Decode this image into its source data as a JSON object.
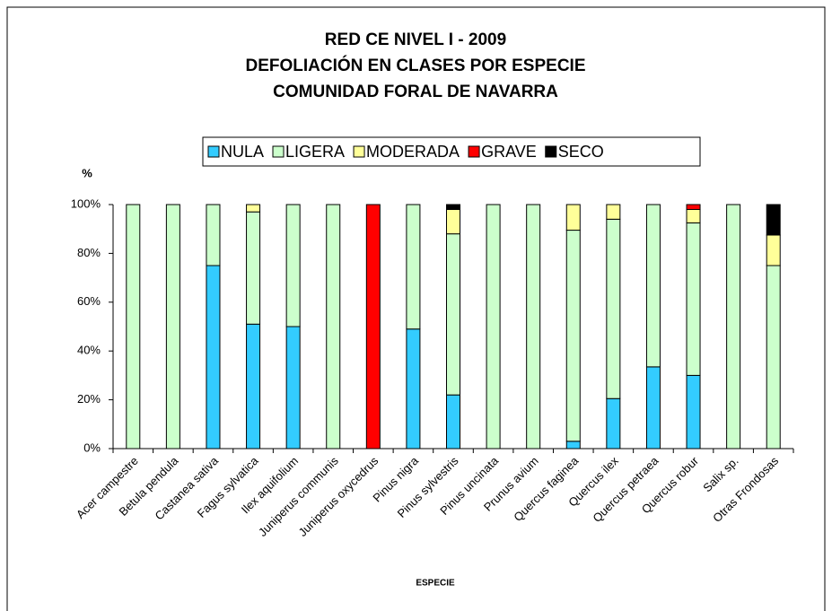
{
  "chart_data": {
    "type": "bar",
    "stacked": true,
    "title": [
      "RED CE NIVEL I - 2009",
      "DEFOLIACIÓN EN CLASES POR ESPECIE",
      "COMUNIDAD FORAL DE NAVARRA"
    ],
    "ylabel": "%",
    "xlabel": "ESPECIE",
    "categories": [
      "Acer campestre",
      "Betula pendula",
      "Castanea sativa",
      "Fagus sylvatica",
      "Ilex aquifolium",
      "Juniperus communis",
      "Juniperus oxycedrus",
      "Pinus nigra",
      "Pinus sylvestris",
      "Pinus uncinata",
      "Prunus avium",
      "Quercus faginea",
      "Quercus ilex",
      "Quercus petraea",
      "Quercus robur",
      "Salix sp.",
      "Otras Frondosas"
    ],
    "series": [
      {
        "name": "NULA",
        "color": "#33ccff",
        "values": [
          0,
          0,
          75,
          51,
          50,
          0,
          0,
          49,
          22,
          0,
          0,
          3,
          20.5,
          33.5,
          30,
          0,
          0
        ]
      },
      {
        "name": "LIGERA",
        "color": "#ccffcc",
        "values": [
          100,
          100,
          25,
          46,
          50,
          100,
          0,
          51,
          66,
          100,
          100,
          86.5,
          73.5,
          66.5,
          62.5,
          100,
          75
        ]
      },
      {
        "name": "MODERADA",
        "color": "#ffff99",
        "values": [
          0,
          0,
          0,
          3,
          0,
          0,
          0,
          0,
          10,
          0,
          0,
          10.5,
          6,
          0,
          5.5,
          0,
          12.5
        ]
      },
      {
        "name": "GRAVE",
        "color": "#ff0000",
        "values": [
          0,
          0,
          0,
          0,
          0,
          0,
          100,
          0,
          0,
          0,
          0,
          0,
          0,
          0,
          2,
          0,
          0
        ]
      },
      {
        "name": "SECO",
        "color": "#000000",
        "values": [
          0,
          0,
          0,
          0,
          0,
          0,
          0,
          0,
          2,
          0,
          0,
          0,
          0,
          0,
          0,
          0,
          12.5
        ]
      }
    ],
    "ylim": [
      0,
      100
    ],
    "yticks": [
      {
        "value": 0,
        "label": "0%"
      },
      {
        "value": 20,
        "label": "20%"
      },
      {
        "value": 40,
        "label": "40%"
      },
      {
        "value": 60,
        "label": "60%"
      },
      {
        "value": 80,
        "label": "80%"
      },
      {
        "value": 100,
        "label": "100%"
      }
    ],
    "legend": "top",
    "grid": false
  }
}
